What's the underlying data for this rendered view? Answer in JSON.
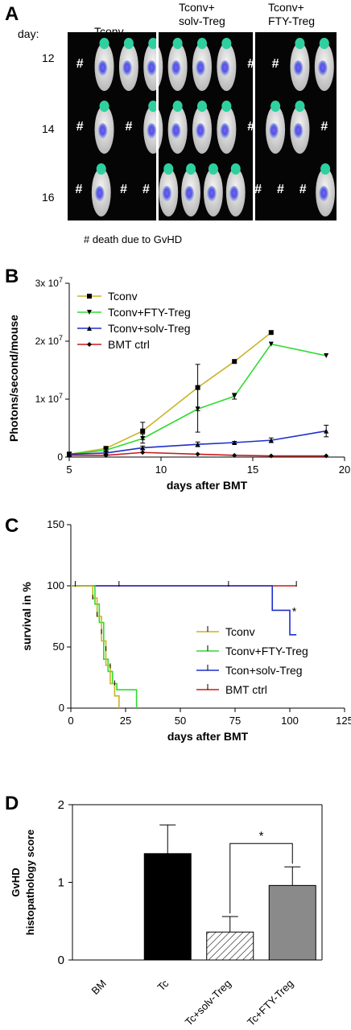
{
  "panel_a": {
    "letter": "A",
    "day_header": "day:",
    "groups": [
      {
        "line1": "Tconv",
        "line2": ""
      },
      {
        "line1": "Tconv+",
        "line2": "solv-Treg"
      },
      {
        "line1": "Tconv+",
        "line2": "FTY-Treg"
      }
    ],
    "days": [
      "12",
      "14",
      "16"
    ],
    "death_marker": "#",
    "grid": [
      [
        "#",
        "m",
        "m",
        "m",
        "m",
        "m",
        "m",
        "#",
        "#",
        "m",
        "m"
      ],
      [
        "#",
        "m",
        "#",
        "m",
        "m",
        "m",
        "m",
        "#",
        "m",
        "m",
        "#"
      ],
      [
        "#",
        "m",
        "#",
        "#",
        "m",
        "m",
        "m",
        "m",
        "#",
        "#",
        "#",
        "m"
      ]
    ],
    "footnote": "# death due to GvHD",
    "colors": {
      "background": "#050505",
      "separator": "#ffffff"
    }
  },
  "chart_data": [
    {
      "panel": "B",
      "type": "line",
      "xlabel": "days after BMT",
      "ylabel": "Photons/second/mouse",
      "xlim": [
        5,
        20
      ],
      "ylim": [
        0,
        30000000
      ],
      "xticks": [
        "5",
        "10",
        "15",
        "20"
      ],
      "yticks": [
        {
          "value": 0,
          "base": "0",
          "exp": ""
        },
        {
          "value": 10000000,
          "base": "1x 10",
          "exp": "7"
        },
        {
          "value": 20000000,
          "base": "2x 10",
          "exp": "7"
        },
        {
          "value": 30000000,
          "base": "3x 10",
          "exp": "7"
        }
      ],
      "legend_position": "top-left",
      "series": [
        {
          "name": "Tconv",
          "color": "#c8b428",
          "marker": "square",
          "x": [
            5,
            7,
            9,
            12,
            14,
            16
          ],
          "y": [
            500000,
            1500000,
            4500000,
            12000000,
            16500000,
            21500000
          ],
          "err": [
            0,
            300000,
            1500000,
            4000000,
            0,
            0
          ]
        },
        {
          "name": "Tconv+FTY-Treg",
          "color": "#2edb2e",
          "marker": "triangle-down",
          "x": [
            5,
            7,
            9,
            12,
            14,
            16,
            19
          ],
          "y": [
            500000,
            1200000,
            3200000,
            8300000,
            10500000,
            19500000,
            17500000
          ],
          "err": [
            0,
            200000,
            800000,
            4000000,
            500000,
            0,
            0
          ]
        },
        {
          "name": "Tconv+solv-Treg",
          "color": "#1e2fcc",
          "marker": "triangle-up",
          "x": [
            5,
            7,
            9,
            12,
            14,
            16,
            19
          ],
          "y": [
            500000,
            700000,
            1600000,
            2200000,
            2500000,
            2900000,
            4500000
          ],
          "err": [
            0,
            200000,
            300000,
            400000,
            200000,
            400000,
            1000000
          ]
        },
        {
          "name": "BMT ctrl",
          "color": "#cc1a1a",
          "marker": "diamond",
          "x": [
            5,
            7,
            9,
            12,
            14,
            16,
            19
          ],
          "y": [
            300000,
            300000,
            800000,
            500000,
            300000,
            200000,
            200000
          ],
          "err": [
            0,
            0,
            0,
            0,
            0,
            0,
            0
          ]
        }
      ]
    },
    {
      "panel": "C",
      "type": "line",
      "subtype": "survival",
      "xlabel": "days after BMT",
      "ylabel": "survival in %",
      "xlim": [
        0,
        125
      ],
      "ylim": [
        0,
        150
      ],
      "xticks": [
        "0",
        "25",
        "50",
        "75",
        "100",
        "125"
      ],
      "yticks": [
        "0",
        "50",
        "100",
        "150"
      ],
      "legend_position": "bottom-right",
      "annotation": "*",
      "series": [
        {
          "name": "Tconv",
          "color": "#c8b428",
          "x": [
            0,
            10,
            12,
            14,
            16,
            18,
            20,
            22
          ],
          "y": [
            100,
            90,
            75,
            55,
            35,
            20,
            10,
            0
          ]
        },
        {
          "name": "Tconv+FTY-Treg",
          "color": "#2edb2e",
          "x": [
            0,
            11,
            13,
            15,
            17,
            19,
            21,
            30
          ],
          "y": [
            100,
            85,
            70,
            40,
            30,
            20,
            15,
            0
          ]
        },
        {
          "name": "Tcon+solv-Treg",
          "color": "#1e2fcc",
          "x": [
            0,
            92,
            98,
            100,
            103
          ],
          "y": [
            100,
            80,
            80,
            60,
            60
          ]
        },
        {
          "name": "BMT ctrl",
          "color": "#cc1a1a",
          "x": [
            0,
            103
          ],
          "y": [
            100,
            100
          ]
        }
      ]
    },
    {
      "panel": "D",
      "type": "bar",
      "ylabel_line1": "GvHD",
      "ylabel_line2": "histopathology score",
      "ylim": [
        0,
        2
      ],
      "yticks": [
        "0",
        "1",
        "2"
      ],
      "categories": [
        "BM",
        "Tc",
        "Tc+solv-Treg",
        "Tc+FTY-Treg"
      ],
      "values": [
        0,
        1.37,
        0.36,
        0.96
      ],
      "err": [
        0,
        0.37,
        0.2,
        0.24
      ],
      "fills": [
        "#000000",
        "#000000",
        "hatch",
        "#8a8a8a"
      ],
      "annotation": "*"
    }
  ],
  "panel_letters": {
    "b": "B",
    "c": "C",
    "d": "D"
  }
}
